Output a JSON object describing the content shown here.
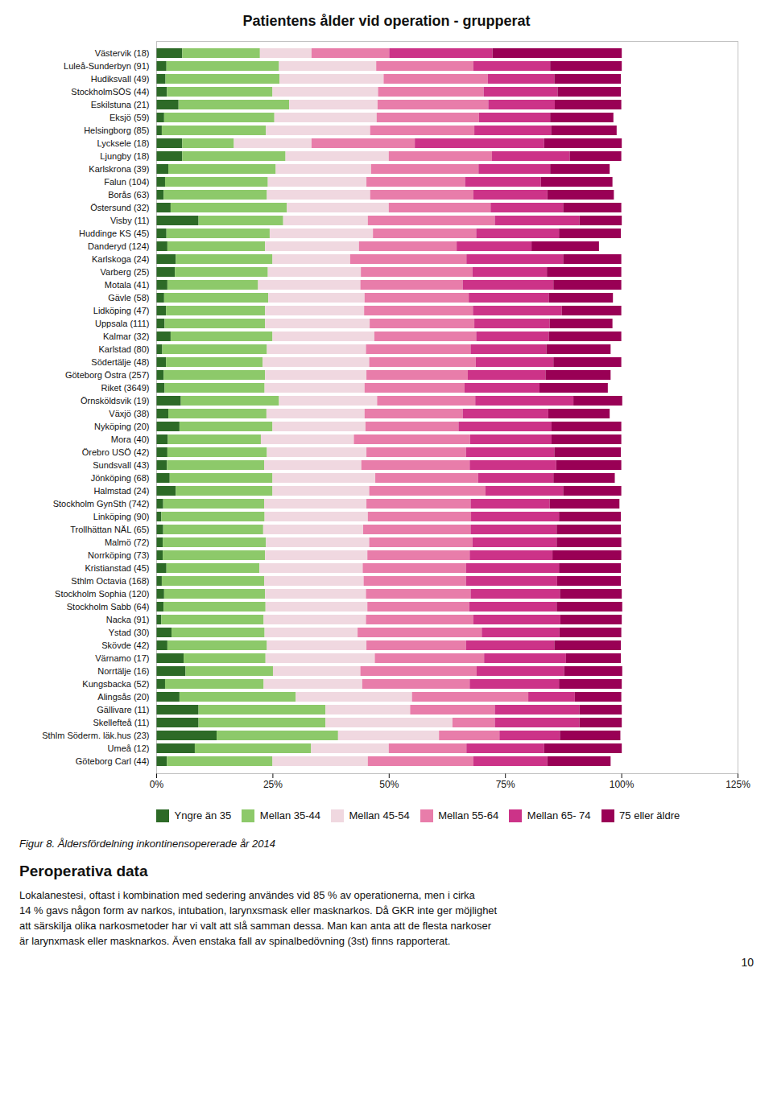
{
  "chart_data": {
    "type": "bar",
    "orientation": "horizontal",
    "stacked": true,
    "title": "Patientens ålder vid operation - grupperat",
    "categories": [
      "Västervik (18)",
      "Luleå-Sunderbyn (91)",
      "Hudiksvall (49)",
      "StockholmSÖS (44)",
      "Eskilstuna (21)",
      "Eksjö (59)",
      "Helsingborg (85)",
      "Lycksele (18)",
      "Ljungby (18)",
      "Karlskrona (39)",
      "Falun (104)",
      "Borås (63)",
      "Östersund (32)",
      "Visby (11)",
      "Huddinge KS (45)",
      "Danderyd (124)",
      "Karlskoga (24)",
      "Varberg (25)",
      "Motala (41)",
      "Gävle (58)",
      "Lidköping (47)",
      "Uppsala (111)",
      "Kalmar (32)",
      "Karlstad (80)",
      "Södertälje (48)",
      "Göteborg Östra (257)",
      "Riket (3649)",
      "Örnsköldsvik (19)",
      "Växjö (38)",
      "Nyköping (20)",
      "Mora (40)",
      "Örebro USÖ (42)",
      "Sundsvall (43)",
      "Jönköping (68)",
      "Halmstad (24)",
      "Stockholm GynSth (742)",
      "Linköping (90)",
      "Trollhättan NÄL (65)",
      "Malmö (72)",
      "Norrköping (73)",
      "Kristianstad (45)",
      "Sthlm Octavia (168)",
      "Stockholm Sophia (120)",
      "Stockholm Sabb (64)",
      "Nacka (91)",
      "Ystad (30)",
      "Skövde (42)",
      "Värnamo (17)",
      "Norrtälje (16)",
      "Kungsbacka (52)",
      "Alingsås (20)",
      "Gällivare (11)",
      "Skellefteå (11)",
      "Sthlm Söderm. läk.hus (23)",
      "Umeå (12)",
      "Göteborg Carl (44)"
    ],
    "series": [
      {
        "name": "Yngre än 35",
        "color": "#2d6a27",
        "values": [
          5.6,
          2.2,
          2.0,
          2.3,
          4.8,
          1.7,
          1.2,
          5.6,
          5.6,
          2.6,
          1.9,
          1.6,
          3.1,
          9.1,
          2.2,
          2.4,
          4.2,
          4.0,
          2.4,
          1.7,
          2.1,
          1.8,
          3.1,
          1.3,
          2.1,
          1.6,
          1.8,
          5.3,
          2.6,
          5.0,
          2.5,
          2.4,
          2.3,
          2.9,
          4.2,
          1.5,
          1.1,
          1.5,
          1.4,
          1.4,
          2.2,
          1.2,
          1.7,
          1.6,
          1.1,
          3.3,
          2.4,
          5.9,
          6.3,
          1.9,
          5.0,
          9.1,
          9.1,
          13.0,
          8.3,
          2.3
        ]
      },
      {
        "name": "Mellan 35-44",
        "color": "#8dc96a",
        "values": [
          16.7,
          24.2,
          24.5,
          22.7,
          23.8,
          23.7,
          22.4,
          11.1,
          22.2,
          23.1,
          22.1,
          22.2,
          25.0,
          18.2,
          22.2,
          21.0,
          20.8,
          20.0,
          19.5,
          22.4,
          21.3,
          21.6,
          21.9,
          22.5,
          20.8,
          21.8,
          21.5,
          21.1,
          21.1,
          20.0,
          20.0,
          21.4,
          20.9,
          22.1,
          20.8,
          21.7,
          22.2,
          21.5,
          22.2,
          22.0,
          20.0,
          22.0,
          21.7,
          21.9,
          22.0,
          20.0,
          21.4,
          17.6,
          18.8,
          21.2,
          25.0,
          27.3,
          27.3,
          26.1,
          25.0,
          22.7
        ]
      },
      {
        "name": "Mellan 45-54",
        "color": "#f0d8e0",
        "values": [
          11.1,
          20.9,
          22.4,
          22.7,
          19.0,
          22.0,
          22.4,
          16.7,
          22.2,
          20.5,
          21.2,
          22.2,
          21.9,
          18.2,
          22.2,
          20.2,
          16.7,
          20.0,
          22.0,
          20.7,
          21.3,
          22.5,
          21.9,
          21.3,
          22.9,
          21.8,
          21.5,
          21.1,
          21.1,
          20.0,
          20.0,
          21.4,
          20.9,
          22.1,
          20.8,
          22.0,
          22.2,
          21.5,
          22.2,
          22.0,
          22.2,
          21.4,
          21.7,
          21.9,
          22.0,
          20.0,
          21.4,
          23.5,
          18.8,
          21.2,
          25.0,
          18.2,
          27.3,
          21.7,
          16.7,
          20.5
        ]
      },
      {
        "name": "Mellan 55-64",
        "color": "#e87daa",
        "values": [
          16.7,
          20.9,
          22.4,
          22.7,
          23.8,
          22.0,
          22.4,
          22.2,
          22.2,
          23.1,
          21.2,
          22.2,
          21.9,
          27.3,
          22.2,
          21.0,
          25.0,
          24.0,
          22.0,
          22.4,
          23.4,
          22.5,
          21.9,
          22.5,
          22.9,
          21.8,
          21.5,
          21.1,
          21.1,
          20.0,
          25.0,
          21.4,
          23.3,
          22.1,
          25.0,
          22.4,
          22.2,
          23.1,
          22.2,
          22.0,
          22.2,
          22.0,
          22.5,
          21.9,
          23.1,
          26.7,
          21.4,
          23.5,
          25.0,
          23.1,
          25.0,
          18.2,
          9.1,
          13.0,
          16.7,
          22.7
        ]
      },
      {
        "name": "Mellan 65- 74",
        "color": "#cc3388",
        "values": [
          22.2,
          16.5,
          14.3,
          15.9,
          14.3,
          15.3,
          16.5,
          27.8,
          16.7,
          15.4,
          16.3,
          15.9,
          15.6,
          18.2,
          17.8,
          16.1,
          20.8,
          16.0,
          19.5,
          17.2,
          19.1,
          16.2,
          15.6,
          16.3,
          16.7,
          16.7,
          16.1,
          21.1,
          18.4,
          20.0,
          17.5,
          19.0,
          18.6,
          16.2,
          16.7,
          17.0,
          18.9,
          18.5,
          18.1,
          17.8,
          20.0,
          19.6,
          19.2,
          18.8,
          18.7,
          16.7,
          19.0,
          17.6,
          18.8,
          19.2,
          10.0,
          18.2,
          18.2,
          13.0,
          16.7,
          15.9
        ]
      },
      {
        "name": "75 eller äldre",
        "color": "#990055",
        "values": [
          27.8,
          15.4,
          14.3,
          13.6,
          14.3,
          13.6,
          14.1,
          16.7,
          11.1,
          12.8,
          15.4,
          14.3,
          12.5,
          9.1,
          13.3,
          14.5,
          12.5,
          16.0,
          14.6,
          13.8,
          12.8,
          13.5,
          15.6,
          13.8,
          14.6,
          14.0,
          14.7,
          10.5,
          13.2,
          15.0,
          15.0,
          14.3,
          14.0,
          13.2,
          12.5,
          15.0,
          13.3,
          13.8,
          13.9,
          14.8,
          13.3,
          13.7,
          13.3,
          14.1,
          13.2,
          13.3,
          14.3,
          11.8,
          12.5,
          13.5,
          10.0,
          9.1,
          9.1,
          13.0,
          16.7,
          13.6
        ]
      }
    ],
    "xlim": [
      0,
      125
    ],
    "xticks": [
      {
        "value": 0,
        "label": "0%"
      },
      {
        "value": 25,
        "label": "25%"
      },
      {
        "value": 50,
        "label": "50%"
      },
      {
        "value": 75,
        "label": "75%"
      },
      {
        "value": 100,
        "label": "100%"
      },
      {
        "value": 125,
        "label": "125%"
      }
    ],
    "grid": false,
    "legend": "bottom",
    "caption": "Figur 8. Åldersfördelning inkontinensopererade år 2014",
    "annotations": [
      "Peroperativa data",
      "Lokalanestesi, oftast i kombination med sedering användes vid 85 % av operationerna, men i cirka",
      "14 % gavs någon form av narkos, intubation, larynxsmask eller masknarkos. Då GKR inte ger möjlighet",
      "att särskilja olika narkosmetoder har vi valt att slå samman dessa. Man kan anta att de flesta narkoser",
      "är larynxmask eller masknarkos. Även enstaka fall av spinalbedövning (3st) finns rapporterat.",
      "10"
    ]
  }
}
